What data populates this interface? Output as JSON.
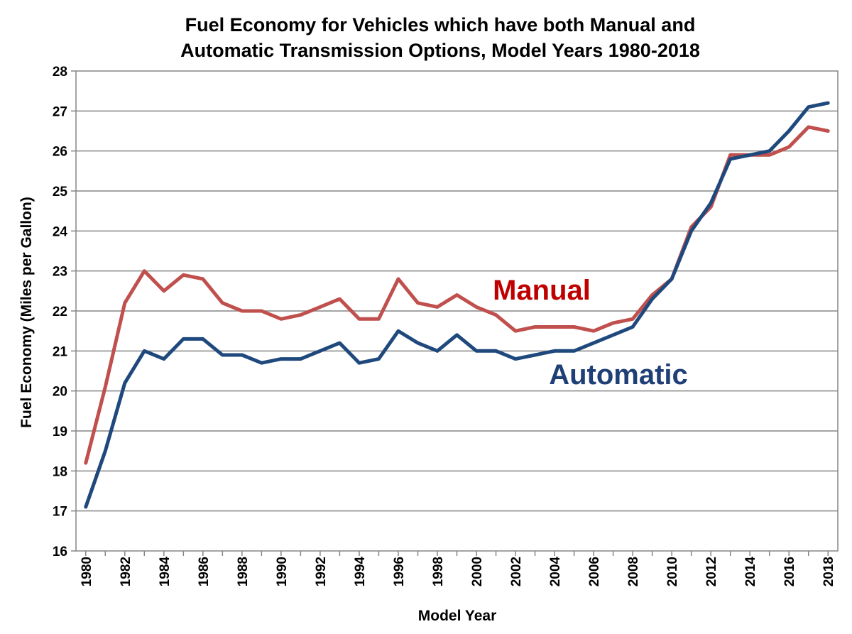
{
  "chart_data": {
    "type": "line",
    "title_line1": "Fuel Economy for Vehicles which have both Manual and",
    "title_line2": "Automatic Transmission Options, Model Years 1980-2018",
    "xlabel": "Model Year",
    "ylabel": "Fuel Economy (Miles per Gallon)",
    "ylim": [
      16,
      28
    ],
    "yticks": [
      "16",
      "17",
      "18",
      "19",
      "20",
      "21",
      "22",
      "23",
      "24",
      "25",
      "26",
      "27",
      "28"
    ],
    "xticks": [
      "1980",
      "1982",
      "1984",
      "1986",
      "1988",
      "1990",
      "1992",
      "1994",
      "1996",
      "1998",
      "2000",
      "2002",
      "2004",
      "2006",
      "2008",
      "2010",
      "2012",
      "2014",
      "2016",
      "2018"
    ],
    "grid": true,
    "legend": "inline labels",
    "x": [
      1980,
      1981,
      1982,
      1983,
      1984,
      1985,
      1986,
      1987,
      1988,
      1989,
      1990,
      1991,
      1992,
      1993,
      1994,
      1995,
      1996,
      1997,
      1998,
      1999,
      2000,
      2001,
      2002,
      2003,
      2004,
      2005,
      2006,
      2007,
      2008,
      2009,
      2010,
      2011,
      2012,
      2013,
      2014,
      2015,
      2016,
      2017,
      2018
    ],
    "series": [
      {
        "name": "Manual",
        "color": "#c0504d",
        "values": [
          18.2,
          20.1,
          22.2,
          23.0,
          22.5,
          22.9,
          22.8,
          22.2,
          22.0,
          22.0,
          21.8,
          21.9,
          22.1,
          22.3,
          21.8,
          21.8,
          22.8,
          22.2,
          22.1,
          22.4,
          22.1,
          21.9,
          21.5,
          21.6,
          21.6,
          21.6,
          21.5,
          21.7,
          21.8,
          22.4,
          22.8,
          24.1,
          24.6,
          25.9,
          25.9,
          25.9,
          26.1,
          26.6,
          26.5
        ]
      },
      {
        "name": "Automatic",
        "color": "#1f497d",
        "values": [
          17.1,
          18.5,
          20.2,
          21.0,
          20.8,
          21.3,
          21.3,
          20.9,
          20.9,
          20.7,
          20.8,
          20.8,
          21.0,
          21.2,
          20.7,
          20.8,
          21.5,
          21.2,
          21.0,
          21.4,
          21.0,
          21.0,
          20.8,
          20.9,
          21.0,
          21.0,
          21.2,
          21.4,
          21.6,
          22.3,
          22.8,
          24.0,
          24.7,
          25.8,
          25.9,
          26.0,
          26.5,
          27.1,
          27.2
        ]
      }
    ]
  }
}
